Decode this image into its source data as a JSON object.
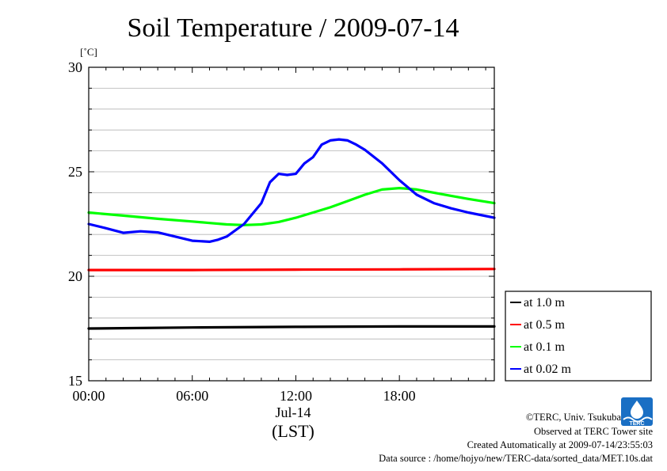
{
  "chart_data": {
    "type": "line",
    "title": "Soil Temperature / 2009-07-14",
    "ylabel": "[˚C]",
    "xlabel": "(LST)",
    "date_label": "Jul-14",
    "ylim": [
      15,
      30
    ],
    "xlim": [
      0,
      23.5
    ],
    "yticks": [
      {
        "value": 15,
        "label": "15"
      },
      {
        "value": 20,
        "label": "20"
      },
      {
        "value": 25,
        "label": "25"
      },
      {
        "value": 30,
        "label": "30"
      }
    ],
    "xticks": [
      {
        "value": 0,
        "label": "00:00"
      },
      {
        "value": 6,
        "label": "06:00"
      },
      {
        "value": 12,
        "label": "12:00"
      },
      {
        "value": 18,
        "label": "18:00"
      }
    ],
    "grid": true,
    "legend_position": "right",
    "series": [
      {
        "name": "at 1.0 m",
        "color": "#000000",
        "x": [
          0,
          6,
          12,
          18,
          23.5
        ],
        "y": [
          17.5,
          17.55,
          17.58,
          17.6,
          17.6
        ]
      },
      {
        "name": "at 0.5 m",
        "color": "#ff0000",
        "x": [
          0,
          6,
          12,
          18,
          23.5
        ],
        "y": [
          20.3,
          20.3,
          20.32,
          20.33,
          20.35
        ]
      },
      {
        "name": "at 0.1 m",
        "color": "#00ff00",
        "x": [
          0,
          2,
          4,
          6,
          7,
          8,
          9,
          10,
          11,
          12,
          13,
          14,
          15,
          16,
          17,
          18,
          19,
          20,
          21,
          22,
          23.5
        ],
        "y": [
          23.05,
          22.9,
          22.75,
          22.62,
          22.55,
          22.48,
          22.45,
          22.48,
          22.6,
          22.8,
          23.05,
          23.3,
          23.6,
          23.9,
          24.15,
          24.22,
          24.15,
          24.0,
          23.85,
          23.7,
          23.5
        ]
      },
      {
        "name": "at 0.02 m",
        "color": "#0000ff",
        "x": [
          0,
          1,
          2,
          3,
          4,
          5,
          6,
          7,
          7.5,
          8,
          9,
          10,
          10.5,
          11,
          11.5,
          12,
          12.5,
          13,
          13.5,
          14,
          14.5,
          15,
          15.5,
          16,
          17,
          18,
          19,
          20,
          21,
          22,
          23.5
        ],
        "y": [
          22.5,
          22.3,
          22.08,
          22.15,
          22.1,
          21.9,
          21.7,
          21.65,
          21.75,
          21.9,
          22.5,
          23.5,
          24.5,
          24.9,
          24.85,
          24.9,
          25.4,
          25.7,
          26.3,
          26.5,
          26.55,
          26.5,
          26.3,
          26.05,
          25.4,
          24.6,
          23.9,
          23.5,
          23.25,
          23.05,
          22.8
        ]
      }
    ]
  },
  "credits": {
    "copyright": "©TERC, Univ. Tsukuba",
    "site": "Observed at TERC Tower site",
    "created": "Created Automatically at 2009-07-14/23:55:03",
    "source": "Data source : /home/hojyo/new/TERC-data/sorted_data/MET.10s.dat"
  },
  "logo_text": "TERC",
  "colors": {
    "logo": "#1a6fc4"
  }
}
